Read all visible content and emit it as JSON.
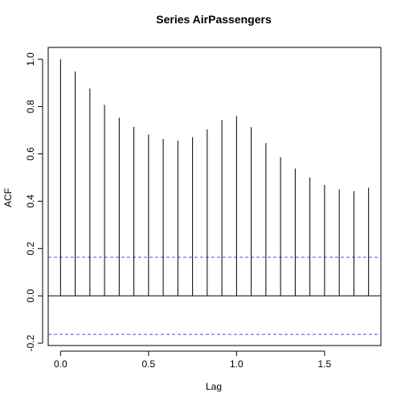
{
  "chart_data": {
    "type": "bar",
    "title": "Series  AirPassengers",
    "xlabel": "Lag",
    "ylabel": "ACF",
    "xlim": [
      -0.07,
      1.82
    ],
    "ylim": [
      -0.21,
      1.05
    ],
    "x_ticks": [
      0.0,
      0.5,
      1.0,
      1.5
    ],
    "x_tick_labels": [
      "0.0",
      "0.5",
      "1.0",
      "1.5"
    ],
    "y_ticks": [
      -0.2,
      0.0,
      0.2,
      0.4,
      0.6,
      0.8,
      1.0
    ],
    "y_tick_labels": [
      "-0.2",
      "0.0",
      "0.2",
      "0.4",
      "0.6",
      "0.8",
      "1.0"
    ],
    "lags": [
      0.0,
      0.0833,
      0.1667,
      0.25,
      0.3333,
      0.4167,
      0.5,
      0.5833,
      0.6667,
      0.75,
      0.8333,
      0.9167,
      1.0,
      1.0833,
      1.1667,
      1.25,
      1.3333,
      1.4167,
      1.5,
      1.5833,
      1.6667,
      1.75
    ],
    "acf": [
      1.0,
      0.948,
      0.876,
      0.807,
      0.753,
      0.714,
      0.682,
      0.663,
      0.656,
      0.671,
      0.703,
      0.743,
      0.76,
      0.713,
      0.646,
      0.586,
      0.538,
      0.5,
      0.469,
      0.45,
      0.442,
      0.457
    ],
    "confidence_limits": [
      0.163,
      -0.163
    ],
    "confidence_color": "#4d4dff",
    "zero_line": 0.0
  }
}
